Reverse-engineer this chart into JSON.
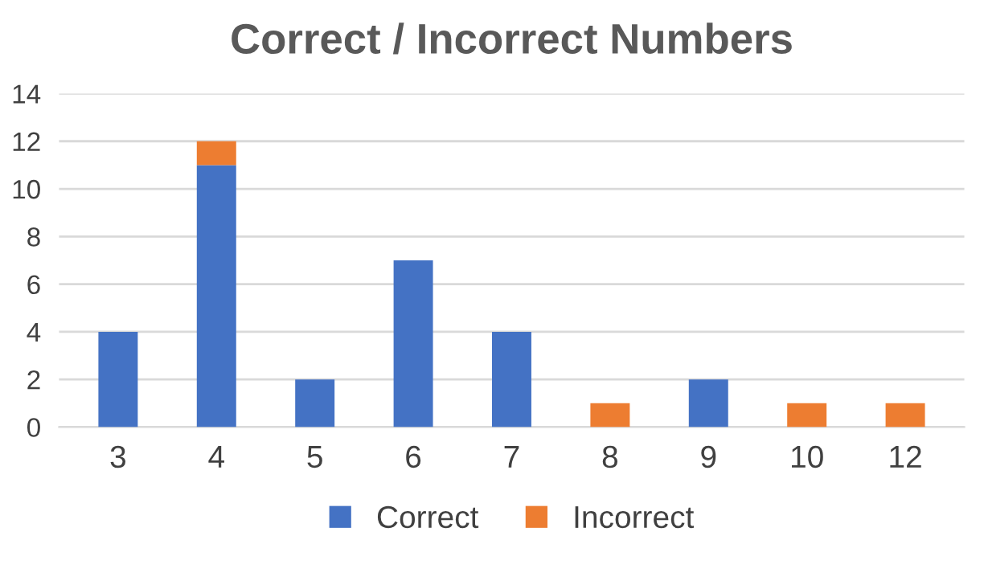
{
  "chart_data": {
    "type": "bar",
    "title": "Correct / Incorrect Numbers",
    "stacked": true,
    "categories": [
      "3",
      "4",
      "5",
      "6",
      "7",
      "8",
      "9",
      "10",
      "12"
    ],
    "series": [
      {
        "name": "Correct",
        "color": "#4472c4",
        "values": [
          4,
          11,
          2,
          7,
          4,
          0,
          2,
          0,
          0
        ]
      },
      {
        "name": "Incorrect",
        "color": "#ed7d31",
        "values": [
          0,
          1,
          0,
          0,
          0,
          1,
          0,
          1,
          1
        ]
      }
    ],
    "ylim": [
      0,
      14
    ],
    "yticks": [
      0,
      2,
      4,
      6,
      8,
      10,
      12,
      14
    ],
    "grid": "y",
    "legend": "bottom"
  }
}
